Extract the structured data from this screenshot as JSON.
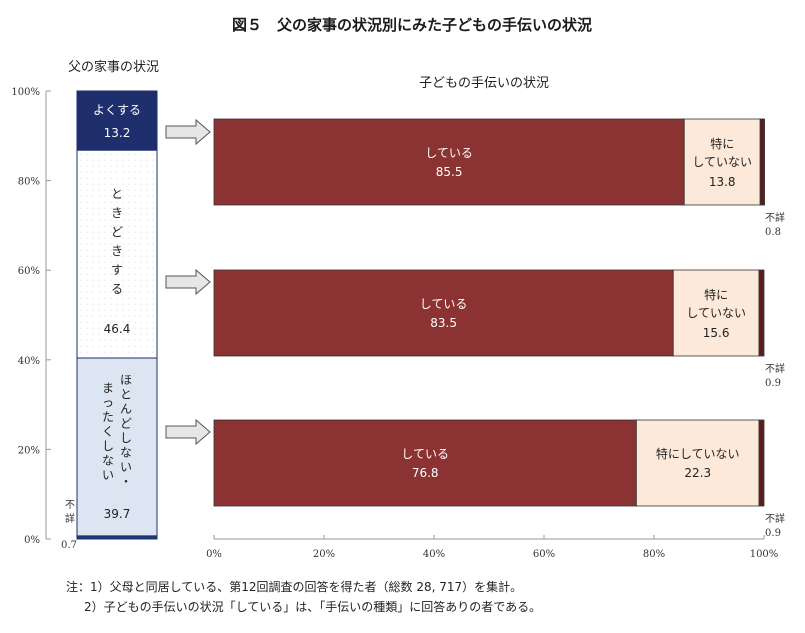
{
  "title": "図５　父の家事の状況別にみた子どもの手伝いの状況",
  "left_heading": "父の家事の状況",
  "right_heading": "子どもの手伝いの状況",
  "notes": [
    "注：1）父母と同居している、第12回調査の回答を得た者（総数 28, 717）を集計。",
    "2）子どもの手伝いの状況「している」は、「手伝いの種類」に回答ありの者である。"
  ],
  "chart_data": [
    {
      "type": "bar",
      "stacked": true,
      "orientation": "vertical",
      "title": "父の家事の状況",
      "yaxis_ticks": [
        "0%",
        "20%",
        "40%",
        "60%",
        "80%",
        "100%"
      ],
      "ylim": [
        0,
        100
      ],
      "segments": [
        {
          "name": "不詳",
          "value": 0.7,
          "color": "#1f3a78"
        },
        {
          "name": "ほとんどしない・まったくしない",
          "value": 39.7,
          "color": "#dce6f2"
        },
        {
          "name": "ときどきする",
          "value": 46.4,
          "color": "#ffffff"
        },
        {
          "name": "よくする",
          "value": 13.2,
          "color": "#1f2f6e"
        }
      ],
      "labels": {
        "yoku": "よくする",
        "yoku_value": "13.2",
        "tokidoki": [
          "と",
          "き",
          "ど",
          "き",
          "す",
          "る"
        ],
        "tokidoki_value": "46.4",
        "hotondo_col1": [
          "ほ",
          "と",
          "ん",
          "ど",
          "し",
          "な",
          "い",
          "・"
        ],
        "hotondo_col2": [
          "ま",
          "っ",
          "た",
          "く",
          "し",
          "な",
          "い"
        ],
        "hotondo_value": "39.7",
        "fusho_chars": [
          "不",
          "詳"
        ],
        "fusho_value": "0.7"
      }
    },
    {
      "type": "bar",
      "stacked": true,
      "orientation": "horizontal",
      "title": "子どもの手伝いの状況",
      "xaxis_ticks": [
        "0%",
        "20%",
        "40%",
        "60%",
        "80%",
        "100%"
      ],
      "xlim": [
        0,
        100
      ],
      "categories": [
        "よくする",
        "ときどきする",
        "ほとんどしない・まったくしない"
      ],
      "series": [
        {
          "name": "している",
          "values": [
            85.5,
            83.5,
            76.8
          ],
          "color": "#8b3232"
        },
        {
          "name": "特にしていない",
          "values": [
            13.8,
            15.6,
            22.3
          ],
          "color": "#fde9d9"
        },
        {
          "name": "不詳",
          "values": [
            0.8,
            0.9,
            0.9
          ],
          "color": "#5a1e1e"
        }
      ],
      "text": {
        "shiteiru": "している",
        "tokuni_line1": "特に",
        "tokuni_line2": "していない",
        "tokuni_full": "特にしていない",
        "fusho": "不詳"
      },
      "value_labels": {
        "shiteiru": [
          "85.5",
          "83.5",
          "76.8"
        ],
        "tokuni": [
          "13.8",
          "15.6",
          "22.3"
        ],
        "fusho": [
          "0.8",
          "0.9",
          "0.9"
        ]
      }
    }
  ]
}
